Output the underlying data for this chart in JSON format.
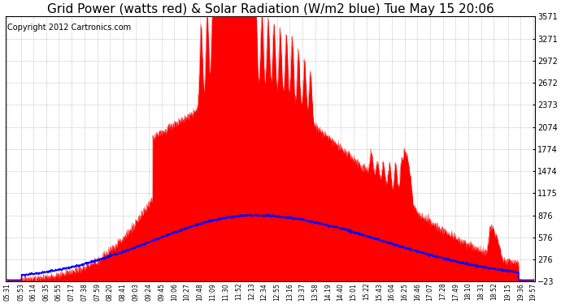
{
  "title": "Grid Power (watts red) & Solar Radiation (W/m2 blue) Tue May 15 20:06",
  "copyright": "Copyright 2012 Cartronics.com",
  "ylim": [
    -23.0,
    3570.9
  ],
  "yticks": [
    3570.9,
    3271.4,
    2971.9,
    2672.4,
    2373.0,
    2073.5,
    1774.0,
    1474.5,
    1175.0,
    875.5,
    576.0,
    276.5,
    -23.0
  ],
  "xtick_labels": [
    "05:31",
    "05:53",
    "06:14",
    "06:35",
    "06:55",
    "07:17",
    "07:38",
    "07:59",
    "08:20",
    "08:41",
    "09:03",
    "09:24",
    "09:45",
    "10:06",
    "10:27",
    "10:48",
    "11:09",
    "11:30",
    "11:52",
    "12:13",
    "12:34",
    "12:55",
    "13:16",
    "13:37",
    "13:58",
    "14:19",
    "14:40",
    "15:01",
    "15:22",
    "15:43",
    "16:04",
    "16:25",
    "16:46",
    "17:07",
    "17:28",
    "17:49",
    "18:10",
    "18:31",
    "18:52",
    "19:15",
    "19:36",
    "19:57"
  ],
  "grid_color": "#aaaaaa",
  "background_color": "#ffffff",
  "fill_color": "#ff0000",
  "line_color_blue": "#0000ff",
  "title_fontsize": 11,
  "copyright_fontsize": 7
}
